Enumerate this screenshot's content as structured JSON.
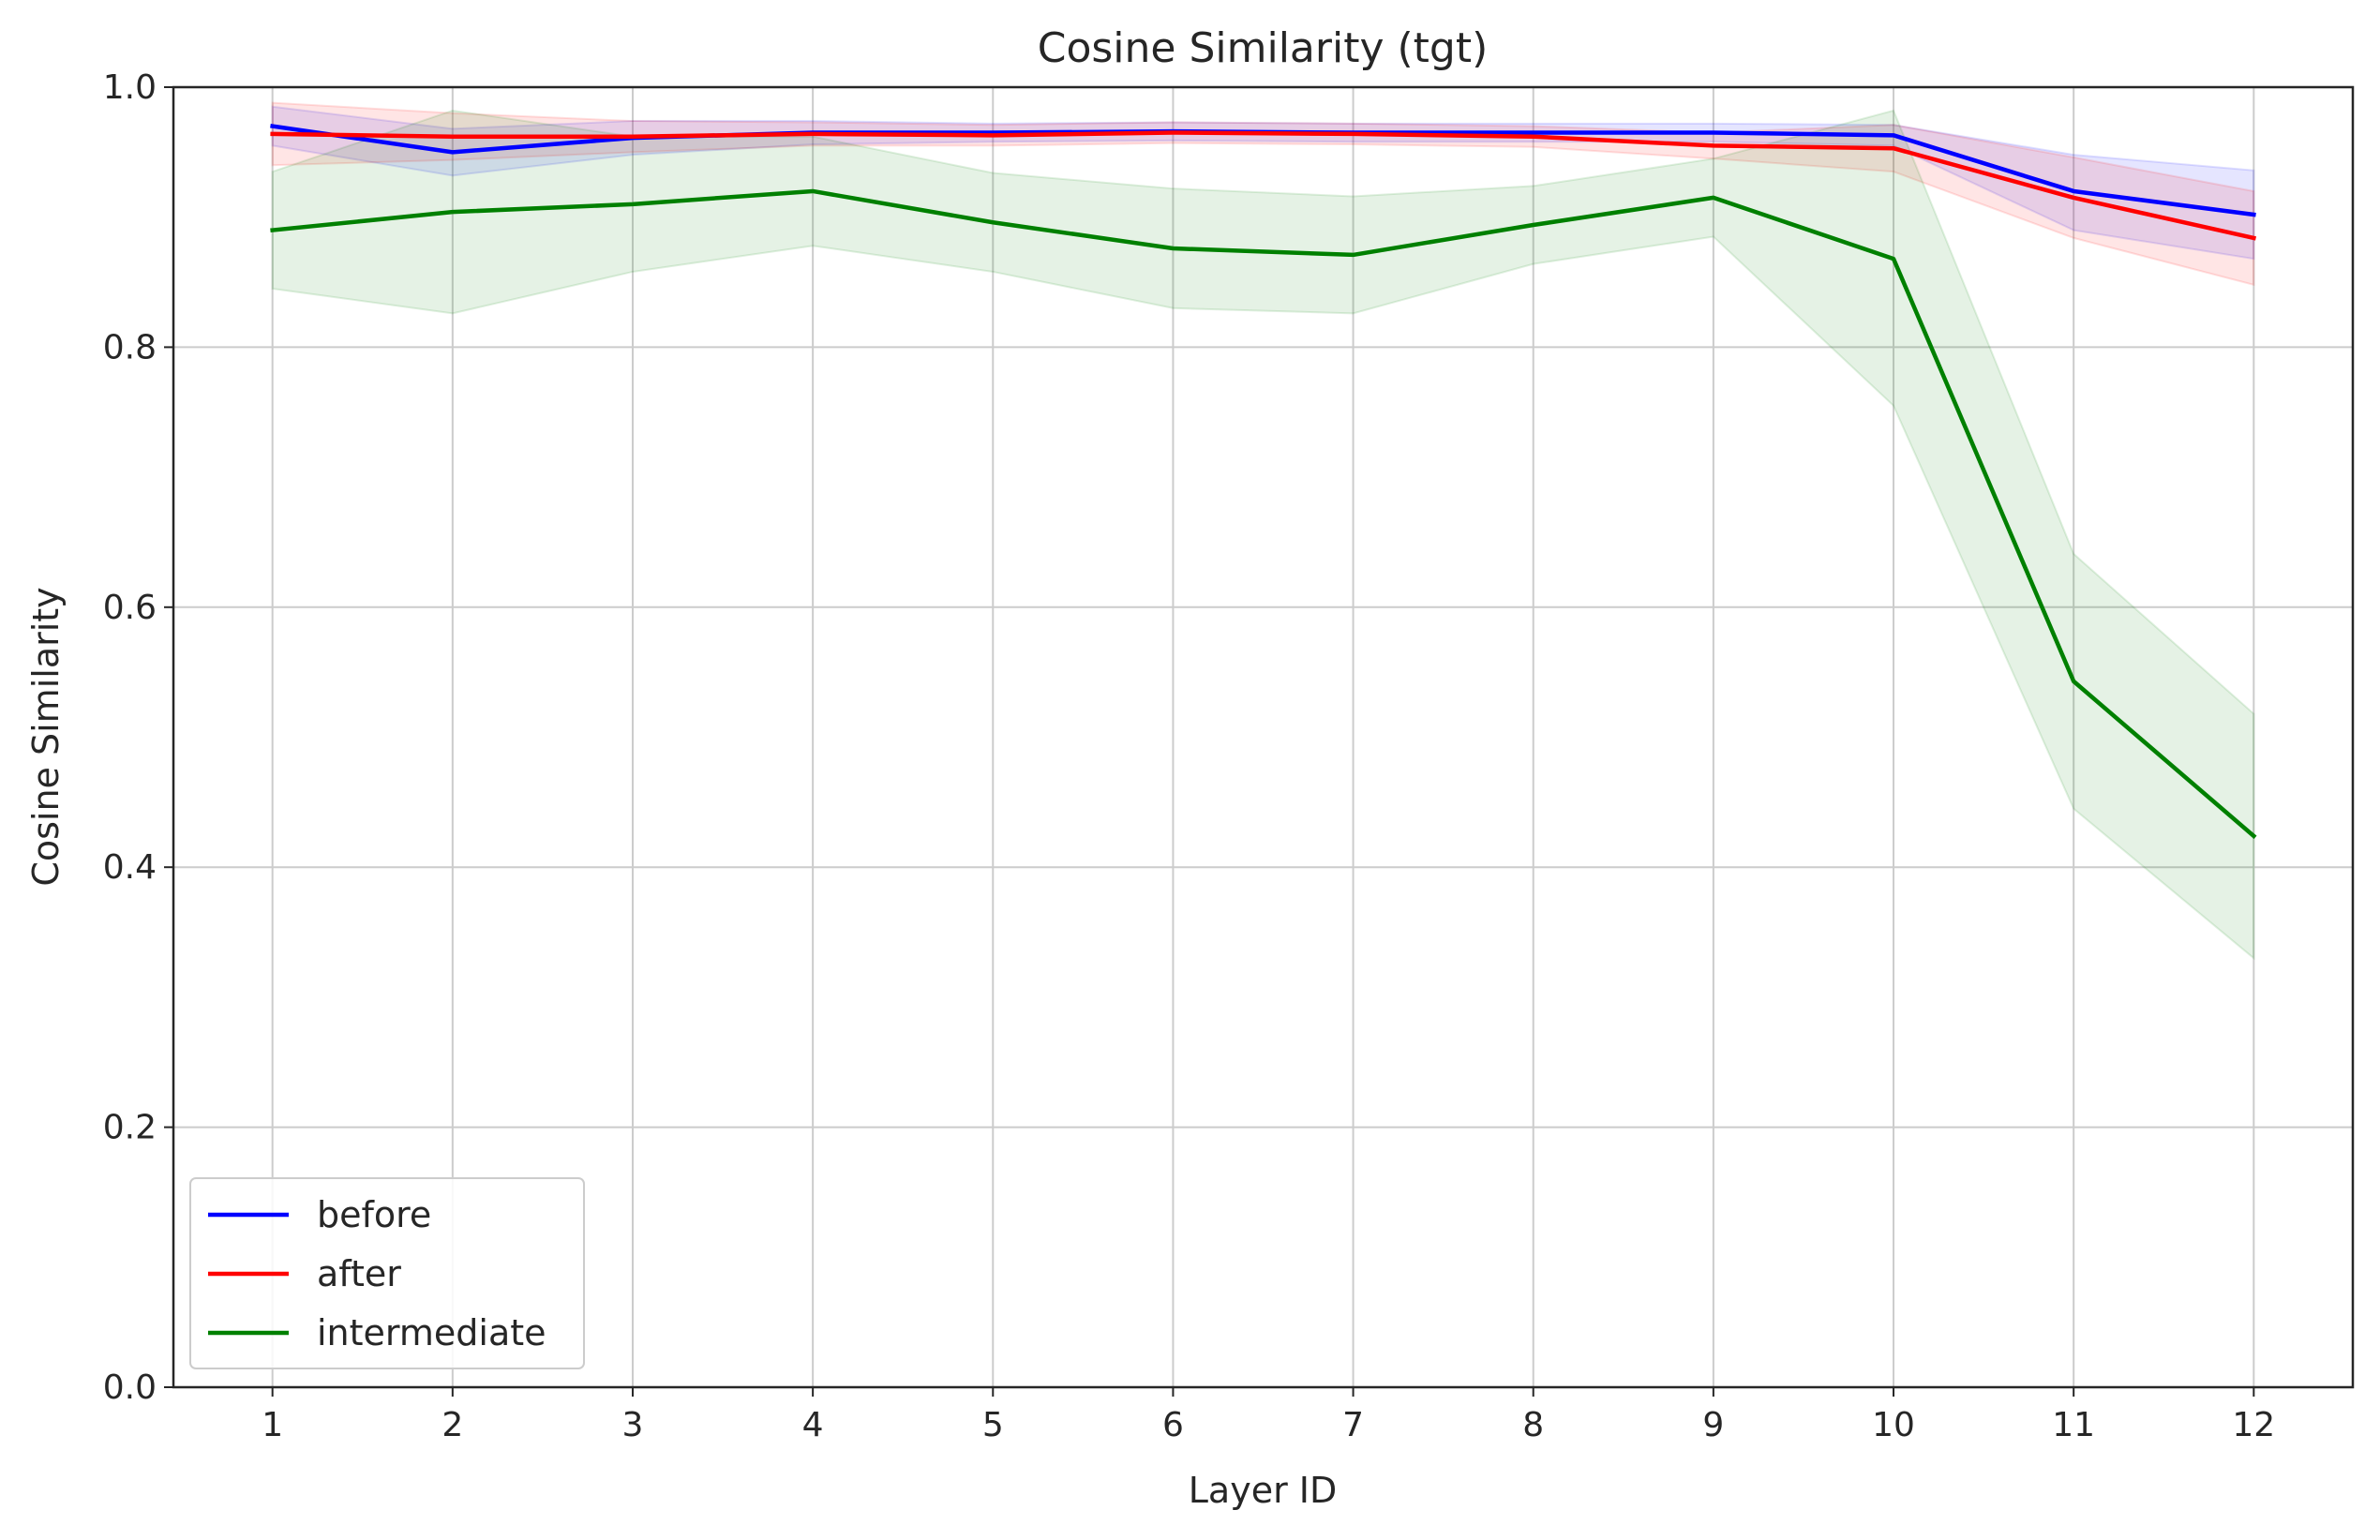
{
  "chart_data": {
    "type": "line",
    "title": "Cosine Similarity (tgt)",
    "xlabel": "Layer ID",
    "ylabel": "Cosine Similarity",
    "x": [
      1,
      2,
      3,
      4,
      5,
      6,
      7,
      8,
      9,
      10,
      11,
      12
    ],
    "xlim": [
      0.45,
      12.55
    ],
    "ylim": [
      0.0,
      1.0
    ],
    "yticks": [
      "0.0",
      "0.2",
      "0.4",
      "0.6",
      "0.8",
      "1.0"
    ],
    "xticks": [
      "1",
      "2",
      "3",
      "4",
      "5",
      "6",
      "7",
      "8",
      "9",
      "10",
      "11",
      "12"
    ],
    "grid": true,
    "legend_position": "lower-left",
    "series": [
      {
        "name": "before",
        "color": "#0000ff",
        "values": [
          0.97,
          0.95,
          0.961,
          0.965,
          0.965,
          0.966,
          0.965,
          0.965,
          0.965,
          0.963,
          0.92,
          0.902
        ],
        "lower": [
          0.955,
          0.932,
          0.948,
          0.956,
          0.958,
          0.959,
          0.958,
          0.958,
          0.958,
          0.955,
          0.89,
          0.868
        ],
        "upper": [
          0.985,
          0.968,
          0.974,
          0.974,
          0.972,
          0.973,
          0.972,
          0.972,
          0.972,
          0.971,
          0.948,
          0.936
        ]
      },
      {
        "name": "after",
        "color": "#ff0000",
        "values": [
          0.964,
          0.962,
          0.962,
          0.964,
          0.963,
          0.965,
          0.964,
          0.962,
          0.955,
          0.953,
          0.915,
          0.884
        ],
        "lower": [
          0.94,
          0.944,
          0.95,
          0.955,
          0.955,
          0.957,
          0.956,
          0.954,
          0.945,
          0.935,
          0.884,
          0.848
        ],
        "upper": [
          0.988,
          0.98,
          0.974,
          0.973,
          0.971,
          0.973,
          0.972,
          0.97,
          0.965,
          0.971,
          0.946,
          0.92
        ]
      },
      {
        "name": "intermediate",
        "color": "#008000",
        "values": [
          0.89,
          0.904,
          0.91,
          0.92,
          0.896,
          0.876,
          0.871,
          0.894,
          0.915,
          0.868,
          0.543,
          0.424
        ],
        "lower": [
          0.845,
          0.826,
          0.858,
          0.878,
          0.858,
          0.83,
          0.826,
          0.864,
          0.885,
          0.755,
          0.445,
          0.33
        ],
        "upper": [
          0.935,
          0.982,
          0.962,
          0.962,
          0.934,
          0.922,
          0.916,
          0.924,
          0.945,
          0.982,
          0.641,
          0.518
        ]
      }
    ]
  }
}
